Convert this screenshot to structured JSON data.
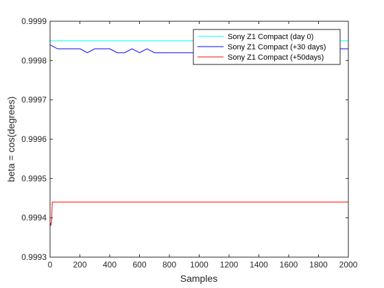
{
  "chart_data": {
    "type": "line",
    "title": "",
    "xlabel": "Samples",
    "ylabel": "beta = cos(degrees)",
    "xlim": [
      0,
      2000
    ],
    "ylim": [
      0.9993,
      0.9999
    ],
    "xticks": [
      0,
      200,
      400,
      600,
      800,
      1000,
      1200,
      1400,
      1600,
      1800,
      2000
    ],
    "yticks": [
      0.9993,
      0.9994,
      0.9995,
      0.9996,
      0.9997,
      0.9998,
      0.9999
    ],
    "xtick_labels": [
      "0",
      "200",
      "400",
      "600",
      "800",
      "1000",
      "1200",
      "1400",
      "1600",
      "1800",
      "2000"
    ],
    "ytick_labels": [
      "0.9993",
      "0.9994",
      "0.9995",
      "0.9996",
      "0.9997",
      "0.9998",
      "0.9999"
    ],
    "grid": false,
    "legend_position": "top-right",
    "series": [
      {
        "name": "Sony Z1 Compact (day 0)",
        "color": "#00ffff",
        "x": [
          0,
          2000
        ],
        "y": [
          0.99985,
          0.99985
        ]
      },
      {
        "name": "Sony Z1 Compact (+30 days)",
        "color": "#0000ff",
        "x": [
          0,
          50,
          100,
          150,
          200,
          250,
          300,
          350,
          400,
          450,
          500,
          550,
          600,
          650,
          700,
          750,
          800,
          850,
          900,
          950,
          1000,
          1050,
          1100,
          1150,
          1200,
          1250,
          1300,
          1350,
          1400,
          1450,
          1500,
          1550,
          1600,
          1650,
          1700,
          1750,
          1800,
          1850,
          1900,
          1950,
          2000
        ],
        "y": [
          0.99984,
          0.99983,
          0.99983,
          0.99983,
          0.99983,
          0.99982,
          0.99983,
          0.99983,
          0.99983,
          0.99982,
          0.99982,
          0.99983,
          0.99982,
          0.99983,
          0.99982,
          0.99982,
          0.99982,
          0.99982,
          0.99982,
          0.99982,
          0.99982,
          0.99982,
          0.99982,
          0.99983,
          0.99982,
          0.99982,
          0.99982,
          0.99982,
          0.99982,
          0.99982,
          0.99982,
          0.99982,
          0.99982,
          0.99982,
          0.99983,
          0.99982,
          0.99982,
          0.99983,
          0.99982,
          0.99983,
          0.99983
        ]
      },
      {
        "name": "Sony Z1 Compact (+50days)",
        "color": "#ff0000",
        "x": [
          0,
          5,
          10,
          15,
          20,
          2000
        ],
        "y": [
          0.99939,
          0.99938,
          0.99939,
          0.99944,
          0.99944,
          0.99944
        ]
      }
    ]
  }
}
